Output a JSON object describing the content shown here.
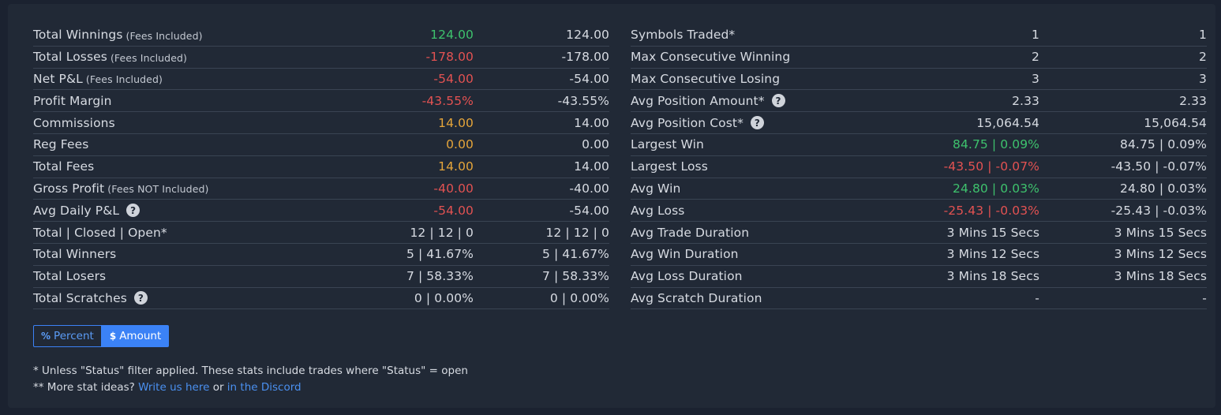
{
  "colors": {
    "accent": "#3b82f6",
    "green": "#3ec26d",
    "red": "#e35252",
    "orange": "#e5a53a"
  },
  "left_rows": [
    {
      "label": "Total Winnings",
      "note": "(Fees Included)",
      "v1": "124.00",
      "v1_color": "green",
      "v2": "124.00"
    },
    {
      "label": "Total Losses",
      "note": "(Fees Included)",
      "v1": "-178.00",
      "v1_color": "red",
      "v2": "-178.00"
    },
    {
      "label": "Net P&L",
      "note": "(Fees Included)",
      "v1": "-54.00",
      "v1_color": "red",
      "v2": "-54.00"
    },
    {
      "label": "Profit Margin",
      "note": "",
      "v1": "-43.55%",
      "v1_color": "red",
      "v2": "-43.55%"
    },
    {
      "label": "Commissions",
      "note": "",
      "v1": "14.00",
      "v1_color": "orange",
      "v2": "14.00"
    },
    {
      "label": "Reg Fees",
      "note": "",
      "v1": "0.00",
      "v1_color": "orange",
      "v2": "0.00"
    },
    {
      "label": "Total Fees",
      "note": "",
      "v1": "14.00",
      "v1_color": "orange",
      "v2": "14.00"
    },
    {
      "label": "Gross Profit",
      "note": "(Fees NOT Included)",
      "v1": "-40.00",
      "v1_color": "red",
      "v2": "-40.00"
    },
    {
      "label": "Avg Daily P&L",
      "note": "",
      "help": true,
      "v1": "-54.00",
      "v1_color": "red",
      "v2": "-54.00"
    },
    {
      "label": "Total | Closed | Open*",
      "note": "",
      "v1": "12 | 12 | 0",
      "v1_color": "",
      "v2": "12 | 12 | 0"
    },
    {
      "label": "Total Winners",
      "note": "",
      "v1": "5 | 41.67%",
      "v1_color": "",
      "v2": "5 | 41.67%"
    },
    {
      "label": "Total Losers",
      "note": "",
      "v1": "7 | 58.33%",
      "v1_color": "",
      "v2": "7 | 58.33%"
    },
    {
      "label": "Total Scratches",
      "note": "",
      "help": true,
      "v1": "0 | 0.00%",
      "v1_color": "",
      "v2": "0 | 0.00%"
    }
  ],
  "right_rows": [
    {
      "label": "Symbols Traded*",
      "v1": "1",
      "v1_color": "",
      "v2": "1"
    },
    {
      "label": "Max Consecutive Winning",
      "v1": "2",
      "v1_color": "",
      "v2": "2"
    },
    {
      "label": "Max Consecutive Losing",
      "v1": "3",
      "v1_color": "",
      "v2": "3"
    },
    {
      "label": "Avg Position Amount*",
      "help": true,
      "v1": "2.33",
      "v1_color": "",
      "v2": "2.33"
    },
    {
      "label": "Avg Position Cost*",
      "help": true,
      "v1": "15,064.54",
      "v1_color": "",
      "v2": "15,064.54"
    },
    {
      "label": "Largest Win",
      "v1": "84.75 | 0.09%",
      "v1_color": "green",
      "v2": "84.75 | 0.09%"
    },
    {
      "label": "Largest Loss",
      "v1": "-43.50 | -0.07%",
      "v1_color": "red",
      "v2": "-43.50 | -0.07%"
    },
    {
      "label": "Avg Win",
      "v1": "24.80 | 0.03%",
      "v1_color": "green",
      "v2": "24.80 | 0.03%"
    },
    {
      "label": "Avg Loss",
      "v1": "-25.43 | -0.03%",
      "v1_color": "red",
      "v2": "-25.43 | -0.03%"
    },
    {
      "label": "Avg Trade Duration",
      "v1": "3 Mins 15 Secs",
      "v1_color": "",
      "v2": "3 Mins 15 Secs"
    },
    {
      "label": "Avg Win Duration",
      "v1": "3 Mins 12 Secs",
      "v1_color": "",
      "v2": "3 Mins 12 Secs"
    },
    {
      "label": "Avg Loss Duration",
      "v1": "3 Mins 18 Secs",
      "v1_color": "",
      "v2": "3 Mins 18 Secs"
    },
    {
      "label": "Avg Scratch Duration",
      "v1": "-",
      "v1_color": "",
      "v2": "-"
    }
  ],
  "toggle": {
    "percent_label": "Percent",
    "percent_icon": "%",
    "amount_label": "Amount",
    "amount_icon": "$",
    "active": "amount"
  },
  "footnotes": {
    "line1": "* Unless \"Status\" filter applied. These stats include trades where \"Status\" = open",
    "line2_prefix": "** More stat ideas?",
    "link1": "Write us here",
    "or_text": "or",
    "link2": "in the Discord"
  }
}
